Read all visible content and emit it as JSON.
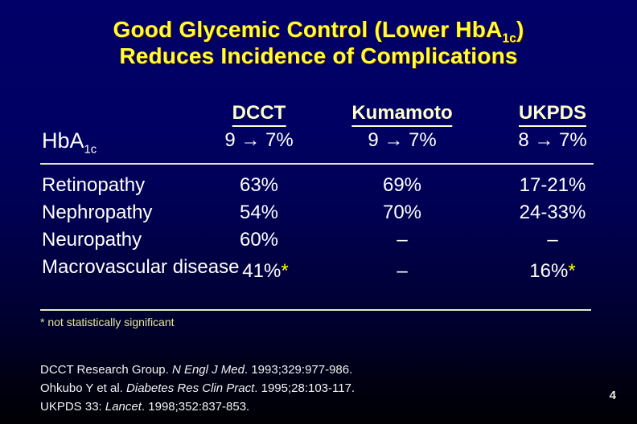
{
  "slide": {
    "title_line1_pre": "Good Glycemic Control (Lower HbA",
    "title_line1_sub": "1c",
    "title_line1_close": ")",
    "title_line2": "Reduces Incidence of Complications",
    "slide_number": "4"
  },
  "table": {
    "row_header": {
      "label_pre": "HbA",
      "label_sub": "1c"
    },
    "columns": [
      {
        "name": "DCCT",
        "hba1c_change": "9 → 7%"
      },
      {
        "name": "Kumamoto",
        "hba1c_change": "9 → 7%"
      },
      {
        "name": "UKPDS",
        "hba1c_change": "8 → 7%"
      }
    ],
    "rows": [
      {
        "label": "Retinopathy",
        "values": [
          {
            "text": "63%",
            "star": ""
          },
          {
            "text": "69%",
            "star": ""
          },
          {
            "text": "17-21%",
            "star": ""
          }
        ]
      },
      {
        "label": "Nephropathy",
        "values": [
          {
            "text": "54%",
            "star": ""
          },
          {
            "text": "70%",
            "star": ""
          },
          {
            "text": "24-33%",
            "star": ""
          }
        ]
      },
      {
        "label": "Neuropathy",
        "values": [
          {
            "text": "60%",
            "star": ""
          },
          {
            "text": "–",
            "star": ""
          },
          {
            "text": "–",
            "star": ""
          }
        ]
      },
      {
        "label": "Macrovascular disease",
        "values": [
          {
            "text": "41%",
            "star": "*"
          },
          {
            "text": "–",
            "star": ""
          },
          {
            "text": "16%",
            "star": "*"
          }
        ]
      }
    ]
  },
  "footnote": "* not statistically significant",
  "references": [
    {
      "pre": "DCCT Research Group. ",
      "italic": "N Engl J Med",
      "post": ". 1993;329:977-986."
    },
    {
      "pre": "Ohkubo Y et al. ",
      "italic": "Diabetes Res Clin Pract",
      "post": ". 1995;28:103-117."
    },
    {
      "pre": "UKPDS 33: ",
      "italic": "Lancet",
      "post": ". 1998;352:837-853."
    }
  ],
  "colors": {
    "background_top": "#000068",
    "background_bottom": "#000004",
    "title_yellow": "#FFFF33",
    "header_cream": "#FFFFCC",
    "body_white": "#FFFFFF",
    "footnote_yellow": "#E6E69C",
    "asterisk_yellow": "#FFFF00",
    "divider_line": "#E8E8C8"
  },
  "chart_data": {
    "type": "table",
    "title": "Good Glycemic Control (Lower HbA1c) Reduces Incidence of Complications",
    "columns": [
      "DCCT",
      "Kumamoto",
      "UKPDS"
    ],
    "hba1c_change": [
      "9 → 7%",
      "9 → 7%",
      "8 → 7%"
    ],
    "rows": [
      {
        "label": "Retinopathy",
        "values": [
          "63%",
          "69%",
          "17-21%"
        ]
      },
      {
        "label": "Nephropathy",
        "values": [
          "54%",
          "70%",
          "24-33%"
        ]
      },
      {
        "label": "Neuropathy",
        "values": [
          "60%",
          "–",
          "–"
        ]
      },
      {
        "label": "Macrovascular disease",
        "values": [
          "41%*",
          "–",
          "16%*"
        ]
      }
    ],
    "footnote": "* not statistically significant"
  }
}
